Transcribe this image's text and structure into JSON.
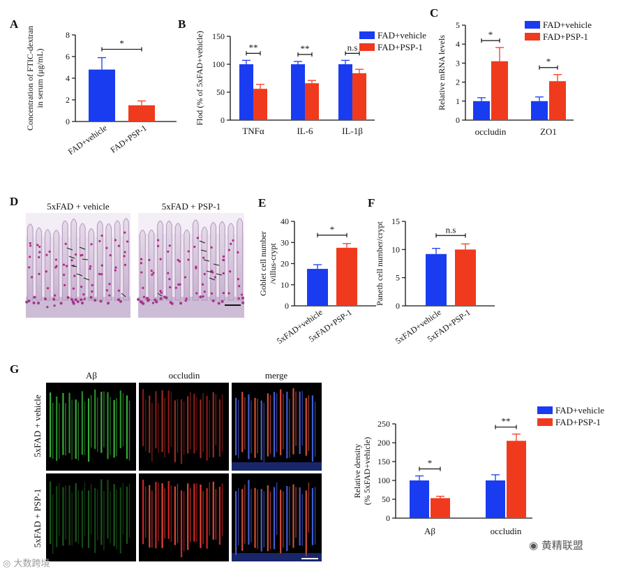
{
  "panels": {
    "A": {
      "letter": "A"
    },
    "B": {
      "letter": "B"
    },
    "C": {
      "letter": "C"
    },
    "D": {
      "letter": "D",
      "left_title": "5xFAD + vehicle",
      "right_title": "5xFAD + PSP-1"
    },
    "E": {
      "letter": "E"
    },
    "F": {
      "letter": "F"
    },
    "G": {
      "letter": "G",
      "col_titles": [
        "Aβ",
        "occludin",
        "merge"
      ],
      "row_titles": [
        "5xFAD + vehicle",
        "5xFAD + PSP-1"
      ]
    }
  },
  "colors": {
    "vehicle": "#1a3cf0",
    "psp": "#f03a1e",
    "stain_bg": "#c9b4d4",
    "blue_fill": "#2060e8"
  },
  "watermarks": {
    "left": "大数跨境",
    "right": "黄精联盟"
  },
  "chart_data": [
    {
      "id": "A",
      "type": "bar",
      "ylabel": "Concentration of FTIC-dextran in serum (μg/mL)",
      "categories": [
        "FAD+vehicle",
        "FAD+PSP-1"
      ],
      "values": [
        4.8,
        1.5
      ],
      "errors": [
        1.1,
        0.4
      ],
      "ylim": [
        0,
        8
      ],
      "yticks": [
        0,
        2,
        4,
        6,
        8
      ],
      "significance": [
        {
          "a": 0,
          "b": 1,
          "label": "*"
        }
      ]
    },
    {
      "id": "B",
      "type": "bar",
      "ylabel": "Flod (% of 5xFAD+vehicle)",
      "categories": [
        "TNFα",
        "IL-6",
        "IL-1β"
      ],
      "series": [
        {
          "name": "FAD+vehicle",
          "values": [
            100,
            100,
            100
          ],
          "errors": [
            7,
            5,
            7
          ]
        },
        {
          "name": "FAD+PSP-1",
          "values": [
            56,
            66,
            84
          ],
          "errors": [
            8,
            5,
            7
          ]
        }
      ],
      "ylim": [
        0,
        150
      ],
      "yticks": [
        0,
        50,
        100,
        150
      ],
      "significance": [
        {
          "cat": 0,
          "label": "**"
        },
        {
          "cat": 1,
          "label": "**"
        },
        {
          "cat": 2,
          "label": "n.s"
        }
      ]
    },
    {
      "id": "C",
      "type": "bar",
      "ylabel": "Relative mRNA levels",
      "categories": [
        "occludin",
        "ZO1"
      ],
      "series": [
        {
          "name": "FAD+vehicle",
          "values": [
            1.0,
            1.0
          ],
          "errors": [
            0.18,
            0.22
          ]
        },
        {
          "name": "FAD+PSP-1",
          "values": [
            3.1,
            2.05
          ],
          "errors": [
            0.72,
            0.35
          ]
        }
      ],
      "ylim": [
        0,
        5
      ],
      "yticks": [
        0,
        1,
        2,
        3,
        4,
        5
      ],
      "significance": [
        {
          "cat": 0,
          "label": "*"
        },
        {
          "cat": 1,
          "label": "*"
        }
      ]
    },
    {
      "id": "E",
      "type": "bar",
      "ylabel": "Goblet cell number /villus-crypt",
      "categories": [
        "5xFAD+vehicle",
        "5xFAD+PSP-1"
      ],
      "values": [
        17.5,
        27.5
      ],
      "errors": [
        2.0,
        2.0
      ],
      "ylim": [
        0,
        40
      ],
      "yticks": [
        0,
        10,
        20,
        30,
        40
      ],
      "significance": [
        {
          "a": 0,
          "b": 1,
          "label": "*"
        }
      ]
    },
    {
      "id": "F",
      "type": "bar",
      "ylabel": "Paneth cell number/crypt",
      "categories": [
        "5xFAD+vehicle",
        "5xFAD+PSP-1"
      ],
      "values": [
        9.2,
        10.0
      ],
      "errors": [
        1.0,
        1.0
      ],
      "ylim": [
        0,
        15
      ],
      "yticks": [
        0,
        5,
        10,
        15
      ],
      "significance": [
        {
          "a": 0,
          "b": 1,
          "label": "n.s"
        }
      ]
    },
    {
      "id": "G",
      "type": "bar",
      "ylabel": "Relative density (% 5xFAD+vehicle)",
      "categories": [
        "Aβ",
        "occludin"
      ],
      "series": [
        {
          "name": "FAD+vehicle",
          "values": [
            100,
            100
          ],
          "errors": [
            12,
            15
          ]
        },
        {
          "name": "FAD+PSP-1",
          "values": [
            53,
            205
          ],
          "errors": [
            5,
            18
          ]
        }
      ],
      "ylim": [
        0,
        250
      ],
      "yticks": [
        0,
        50,
        100,
        150,
        200,
        250
      ],
      "significance": [
        {
          "cat": 0,
          "label": "*"
        },
        {
          "cat": 1,
          "label": "**"
        }
      ]
    }
  ]
}
